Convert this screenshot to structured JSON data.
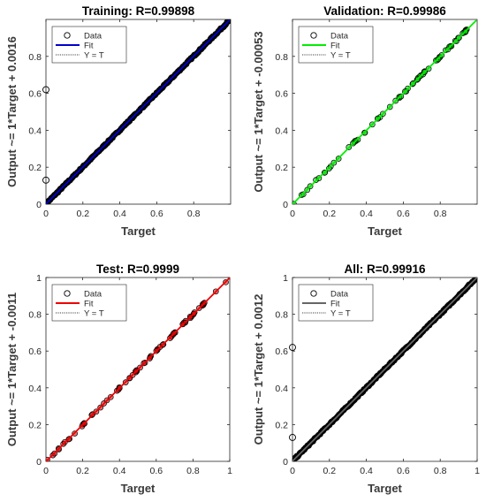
{
  "chart_data": [
    {
      "type": "scatter",
      "title": "Training: R=0.99898",
      "xlabel": "Target",
      "ylabel": "Output ~= 1*Target + 0.0016",
      "xlim": [
        0,
        1
      ],
      "ylim": [
        0,
        1
      ],
      "xticks": [
        "0",
        "0.2",
        "0.4",
        "0.6",
        "0.8"
      ],
      "yticks": [
        "0",
        "0.2",
        "0.4",
        "0.6",
        "0.8"
      ],
      "grid": false,
      "legend_position": "top-left",
      "fit_color": "#0000cc",
      "point_fill": "#000000",
      "density": "dense",
      "fit": {
        "slope": 1,
        "intercept": 0.0016
      },
      "outliers": [
        {
          "x": 0.0,
          "y": 0.62
        },
        {
          "x": 0.0,
          "y": 0.13
        }
      ],
      "legend": [
        "Data",
        "Fit",
        "Y = T"
      ]
    },
    {
      "type": "scatter",
      "title": "Validation: R=0.99986",
      "xlabel": "Target",
      "ylabel": "Output ~= 1*Target + -0.00053",
      "xlim": [
        0,
        1
      ],
      "ylim": [
        0,
        1
      ],
      "xticks": [
        "0",
        "0.2",
        "0.4",
        "0.6",
        "0.8"
      ],
      "yticks": [
        "0",
        "0.2",
        "0.4",
        "0.6",
        "0.8"
      ],
      "grid": false,
      "legend_position": "top-left",
      "fit_color": "#00ee00",
      "point_fill": "#00cc00",
      "density": "sparse",
      "fit": {
        "slope": 1,
        "intercept": -0.00053
      },
      "outliers": [],
      "legend": [
        "Data",
        "Fit",
        "Y = T"
      ]
    },
    {
      "type": "scatter",
      "title": "Test: R=0.9999",
      "xlabel": "Target",
      "ylabel": "Output ~= 1*Target + -0.0011",
      "xlim": [
        0,
        1
      ],
      "ylim": [
        0,
        1
      ],
      "xticks": [
        "0",
        "0.2",
        "0.4",
        "0.6",
        "0.8",
        "1"
      ],
      "yticks": [
        "0",
        "0.2",
        "0.4",
        "0.6",
        "0.8",
        "1"
      ],
      "grid": false,
      "legend_position": "top-left",
      "fit_color": "#ee0000",
      "point_fill": "#cc0000",
      "density": "sparse",
      "fit": {
        "slope": 1,
        "intercept": -0.0011
      },
      "outliers": [],
      "legend": [
        "Data",
        "Fit",
        "Y = T"
      ]
    },
    {
      "type": "scatter",
      "title": "All: R=0.99916",
      "xlabel": "Target",
      "ylabel": "Output ~= 1*Target + 0.0012",
      "xlim": [
        0,
        1
      ],
      "ylim": [
        0,
        1
      ],
      "xticks": [
        "0",
        "0.2",
        "0.4",
        "0.6",
        "0.8",
        "1"
      ],
      "yticks": [
        "0",
        "0.2",
        "0.4",
        "0.6",
        "0.8",
        "1"
      ],
      "grid": false,
      "legend_position": "top-left",
      "fit_color": "#666666",
      "point_fill": "#000000",
      "density": "dense",
      "fit": {
        "slope": 1,
        "intercept": 0.0012
      },
      "outliers": [
        {
          "x": 0.0,
          "y": 0.62
        },
        {
          "x": 0.0,
          "y": 0.13
        }
      ],
      "legend": [
        "Data",
        "Fit",
        "Y = T"
      ]
    }
  ]
}
